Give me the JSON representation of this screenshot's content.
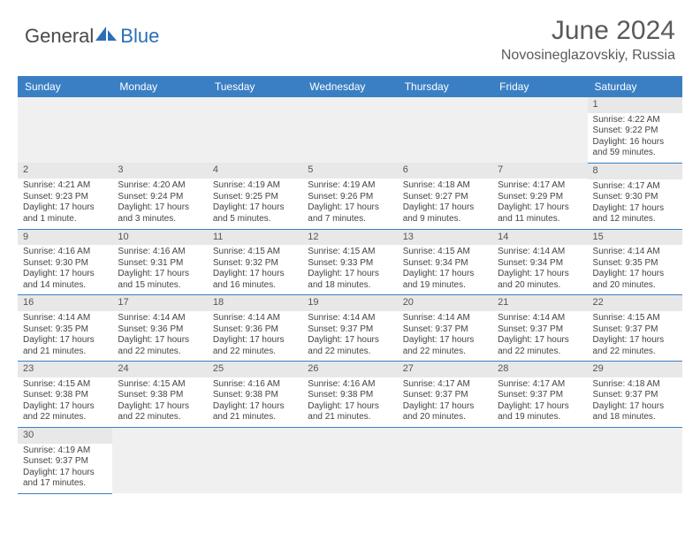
{
  "brand": {
    "name_part1": "General",
    "name_part2": "Blue"
  },
  "title": "June 2024",
  "location": "Novosineglazovskiy, Russia",
  "colors": {
    "header_bg": "#3a7fc4",
    "header_text": "#ffffff",
    "daynum_bg": "#e8e8e8",
    "row_border": "#3a7fc4",
    "logo_blue": "#2b6fb5"
  },
  "weekdays": [
    "Sunday",
    "Monday",
    "Tuesday",
    "Wednesday",
    "Thursday",
    "Friday",
    "Saturday"
  ],
  "days": {
    "1": {
      "sunrise": "4:22 AM",
      "sunset": "9:22 PM",
      "daylight": "16 hours and 59 minutes."
    },
    "2": {
      "sunrise": "4:21 AM",
      "sunset": "9:23 PM",
      "daylight": "17 hours and 1 minute."
    },
    "3": {
      "sunrise": "4:20 AM",
      "sunset": "9:24 PM",
      "daylight": "17 hours and 3 minutes."
    },
    "4": {
      "sunrise": "4:19 AM",
      "sunset": "9:25 PM",
      "daylight": "17 hours and 5 minutes."
    },
    "5": {
      "sunrise": "4:19 AM",
      "sunset": "9:26 PM",
      "daylight": "17 hours and 7 minutes."
    },
    "6": {
      "sunrise": "4:18 AM",
      "sunset": "9:27 PM",
      "daylight": "17 hours and 9 minutes."
    },
    "7": {
      "sunrise": "4:17 AM",
      "sunset": "9:29 PM",
      "daylight": "17 hours and 11 minutes."
    },
    "8": {
      "sunrise": "4:17 AM",
      "sunset": "9:30 PM",
      "daylight": "17 hours and 12 minutes."
    },
    "9": {
      "sunrise": "4:16 AM",
      "sunset": "9:30 PM",
      "daylight": "17 hours and 14 minutes."
    },
    "10": {
      "sunrise": "4:16 AM",
      "sunset": "9:31 PM",
      "daylight": "17 hours and 15 minutes."
    },
    "11": {
      "sunrise": "4:15 AM",
      "sunset": "9:32 PM",
      "daylight": "17 hours and 16 minutes."
    },
    "12": {
      "sunrise": "4:15 AM",
      "sunset": "9:33 PM",
      "daylight": "17 hours and 18 minutes."
    },
    "13": {
      "sunrise": "4:15 AM",
      "sunset": "9:34 PM",
      "daylight": "17 hours and 19 minutes."
    },
    "14": {
      "sunrise": "4:14 AM",
      "sunset": "9:34 PM",
      "daylight": "17 hours and 20 minutes."
    },
    "15": {
      "sunrise": "4:14 AM",
      "sunset": "9:35 PM",
      "daylight": "17 hours and 20 minutes."
    },
    "16": {
      "sunrise": "4:14 AM",
      "sunset": "9:35 PM",
      "daylight": "17 hours and 21 minutes."
    },
    "17": {
      "sunrise": "4:14 AM",
      "sunset": "9:36 PM",
      "daylight": "17 hours and 22 minutes."
    },
    "18": {
      "sunrise": "4:14 AM",
      "sunset": "9:36 PM",
      "daylight": "17 hours and 22 minutes."
    },
    "19": {
      "sunrise": "4:14 AM",
      "sunset": "9:37 PM",
      "daylight": "17 hours and 22 minutes."
    },
    "20": {
      "sunrise": "4:14 AM",
      "sunset": "9:37 PM",
      "daylight": "17 hours and 22 minutes."
    },
    "21": {
      "sunrise": "4:14 AM",
      "sunset": "9:37 PM",
      "daylight": "17 hours and 22 minutes."
    },
    "22": {
      "sunrise": "4:15 AM",
      "sunset": "9:37 PM",
      "daylight": "17 hours and 22 minutes."
    },
    "23": {
      "sunrise": "4:15 AM",
      "sunset": "9:38 PM",
      "daylight": "17 hours and 22 minutes."
    },
    "24": {
      "sunrise": "4:15 AM",
      "sunset": "9:38 PM",
      "daylight": "17 hours and 22 minutes."
    },
    "25": {
      "sunrise": "4:16 AM",
      "sunset": "9:38 PM",
      "daylight": "17 hours and 21 minutes."
    },
    "26": {
      "sunrise": "4:16 AM",
      "sunset": "9:38 PM",
      "daylight": "17 hours and 21 minutes."
    },
    "27": {
      "sunrise": "4:17 AM",
      "sunset": "9:37 PM",
      "daylight": "17 hours and 20 minutes."
    },
    "28": {
      "sunrise": "4:17 AM",
      "sunset": "9:37 PM",
      "daylight": "17 hours and 19 minutes."
    },
    "29": {
      "sunrise": "4:18 AM",
      "sunset": "9:37 PM",
      "daylight": "17 hours and 18 minutes."
    },
    "30": {
      "sunrise": "4:19 AM",
      "sunset": "9:37 PM",
      "daylight": "17 hours and 17 minutes."
    }
  },
  "labels": {
    "sunrise": "Sunrise: ",
    "sunset": "Sunset: ",
    "daylight": "Daylight: "
  },
  "layout": {
    "first_weekday_index": 6,
    "days_in_month": 30
  }
}
